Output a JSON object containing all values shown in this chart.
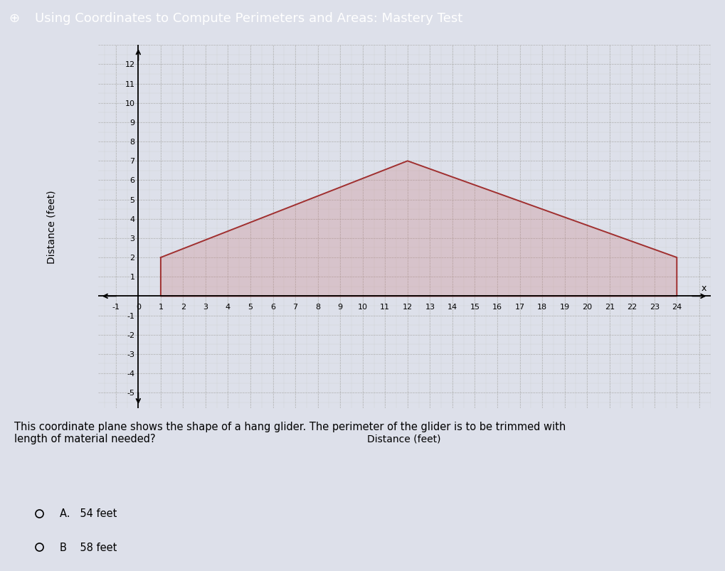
{
  "title": "Using Coordinates to Compute Perimeters and Areas: Mastery Test",
  "title_bg_color": "#2b6cb0",
  "title_text_color": "#ffffff",
  "title_fontsize": 13,
  "xlabel": "Distance (feet)",
  "ylabel": "Distance (feet)",
  "xlim": [
    -1.8,
    25.5
  ],
  "ylim": [
    -5.8,
    13.0
  ],
  "xticks": [
    -1,
    0,
    1,
    2,
    3,
    4,
    5,
    6,
    7,
    8,
    9,
    10,
    11,
    12,
    13,
    14,
    15,
    16,
    17,
    18,
    19,
    20,
    21,
    22,
    23,
    24
  ],
  "yticks": [
    -5,
    -4,
    -3,
    -2,
    -1,
    0,
    1,
    2,
    3,
    4,
    5,
    6,
    7,
    8,
    9,
    10,
    11,
    12
  ],
  "shape_x": [
    1,
    12,
    24,
    24,
    1,
    1
  ],
  "shape_y": [
    2,
    7,
    2,
    0,
    0,
    2
  ],
  "shape_fill_color": "#c97070",
  "shape_fill_alpha": 0.25,
  "shape_edge_color": "#a03030",
  "shape_edge_width": 1.4,
  "grid_dash_color": "#aaaaaa",
  "grid_minor_color": "#cccccc",
  "bg_color": "#dde0ea",
  "plot_bg_color": "#dde0ea",
  "text_body": "This coordinate plane shows the shape of a hang glider. The perimeter of the glider is to be trimmed with\nlength of material needed?",
  "answer_a": "A.   54 feet",
  "answer_b": "B    58 feet",
  "tick_fontsize": 8,
  "axis_label_fontsize": 10
}
